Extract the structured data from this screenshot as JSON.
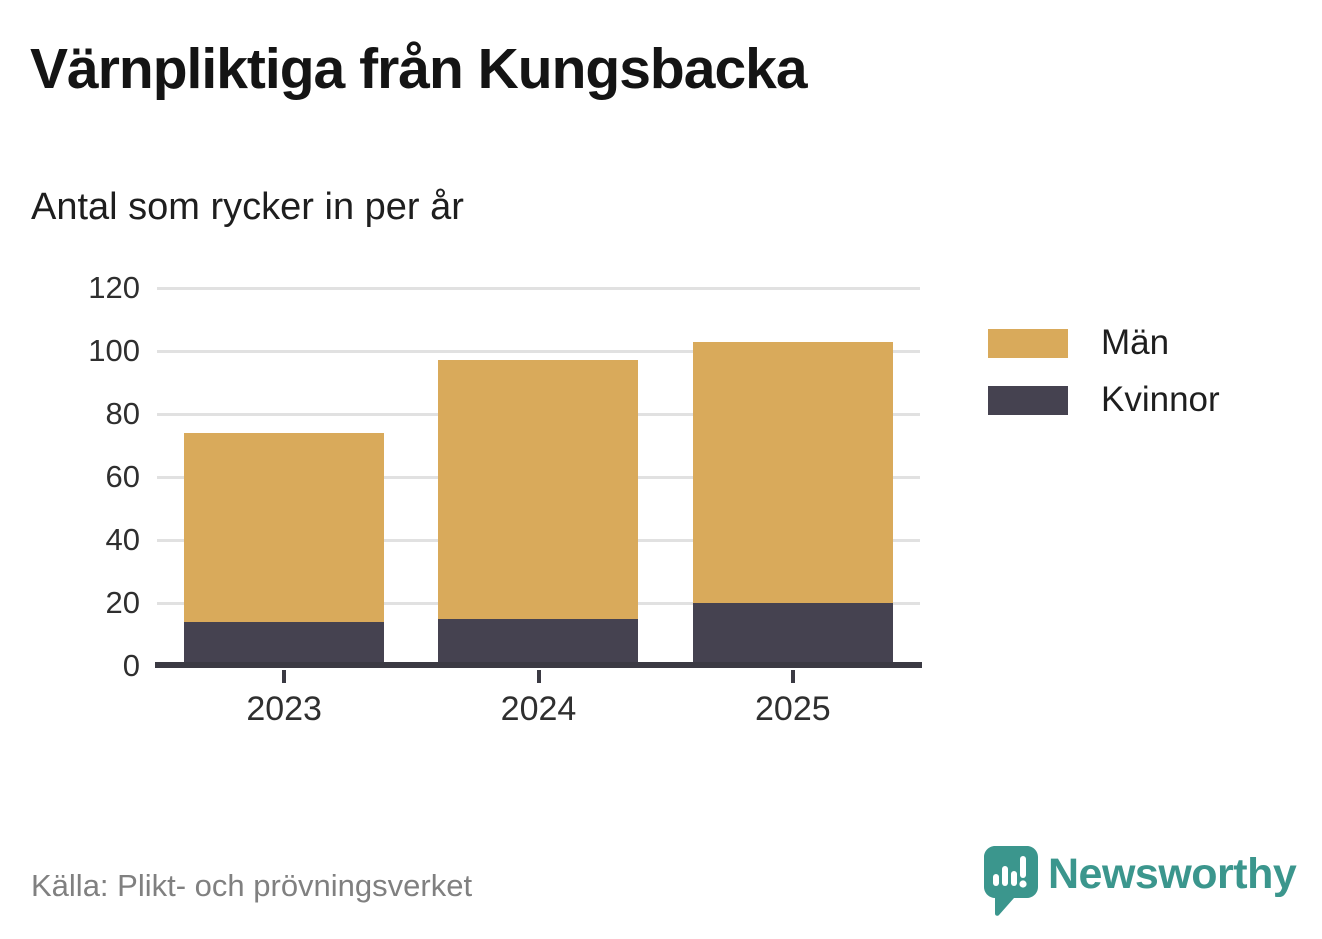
{
  "title": "Värnpliktiga från Kungsbacka",
  "subtitle": "Antal som rycker in per år",
  "source": "Källa: Plikt- och prövningsverket",
  "brand": {
    "name": "Newsworthy",
    "color": "#3b968d",
    "icon": "newsworthy-speech-bubble-bar-chart-icon"
  },
  "colors": {
    "men": "#d9aa5b",
    "women": "#454250",
    "grid": "#e1e1e1",
    "axis": "#3b3a43",
    "title_text": "#141414",
    "tick_text": "#2f2f2f",
    "source_text": "#808080"
  },
  "chart_data": {
    "type": "bar",
    "stacked": true,
    "title": "Värnpliktiga från Kungsbacka",
    "subtitle": "Antal som rycker in per år",
    "categories": [
      "2023",
      "2024",
      "2025"
    ],
    "series": [
      {
        "name": "Män",
        "color": "#d9aa5b",
        "values": [
          60,
          82,
          83
        ]
      },
      {
        "name": "Kvinnor",
        "color": "#454250",
        "values": [
          14,
          15,
          20
        ]
      }
    ],
    "stack_totals": [
      74,
      97,
      103
    ],
    "xlabel": "",
    "ylabel": "",
    "ylim": [
      0,
      120
    ],
    "yticks": [
      0,
      20,
      40,
      60,
      80,
      100,
      120
    ],
    "grid": true,
    "legend_position": "right"
  }
}
